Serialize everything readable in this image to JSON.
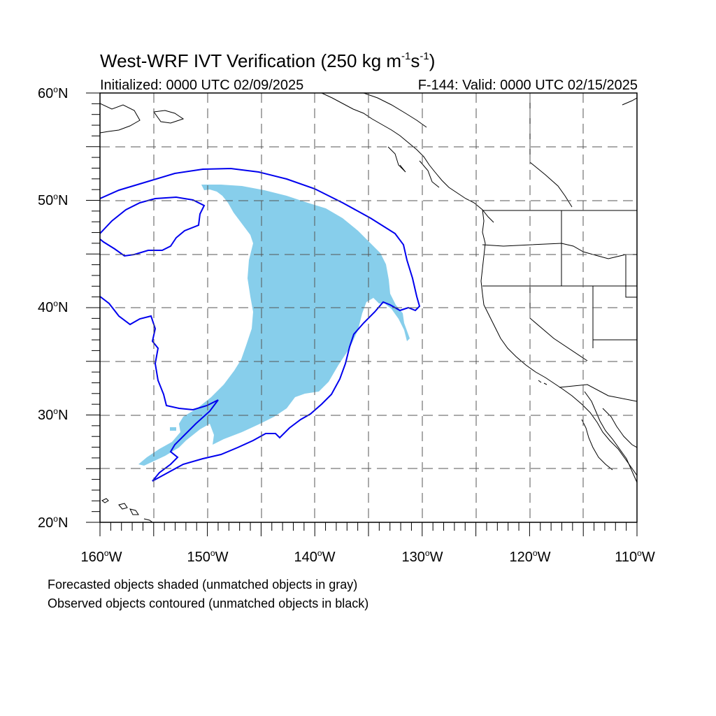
{
  "title": {
    "main": "West-WRF IVT Verification (250 kg m",
    "exp1": "-1",
    "mid": "s",
    "exp2": "-1",
    "end": ")"
  },
  "initialized": "Initialized: 0000 UTC 02/09/2025",
  "valid": "F-144: Valid: 0000 UTC 02/15/2025",
  "lat_labels": [
    {
      "num": "60",
      "dir": "N"
    },
    {
      "num": "50",
      "dir": "N"
    },
    {
      "num": "40",
      "dir": "N"
    },
    {
      "num": "30",
      "dir": "N"
    },
    {
      "num": "20",
      "dir": "N"
    }
  ],
  "lon_labels": [
    {
      "num": "160",
      "dir": "W"
    },
    {
      "num": "150",
      "dir": "W"
    },
    {
      "num": "140",
      "dir": "W"
    },
    {
      "num": "130",
      "dir": "W"
    },
    {
      "num": "120",
      "dir": "W"
    },
    {
      "num": "110",
      "dir": "W"
    }
  ],
  "degree_symbol": "o",
  "notes": {
    "forecast": "Forecasted objects shaded (unmatched objects in gray)",
    "observed": "Observed objects contoured (unmatched objects in black)"
  },
  "colors": {
    "forecast_fill": "#87ceeb",
    "observed_contour": "#0000ee",
    "coastline": "#000000",
    "grid": "#555555"
  }
}
